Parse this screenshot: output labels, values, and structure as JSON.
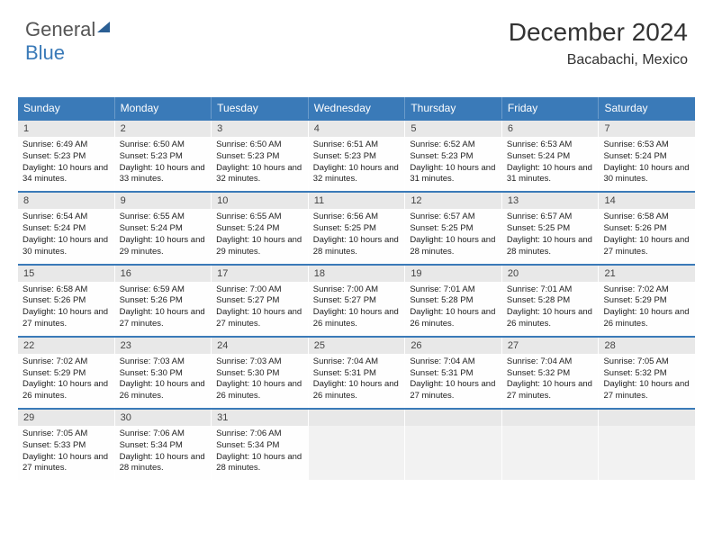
{
  "logo": {
    "part1": "General",
    "part2": "Blue"
  },
  "title": "December 2024",
  "location": "Bacabachi, Mexico",
  "colors": {
    "header_bg": "#3a7ab8",
    "daynum_bg": "#e8e8e8",
    "border_accent": "#3a7ab8",
    "text": "#222222",
    "background": "#ffffff"
  },
  "typography": {
    "title_fontsize": 28,
    "location_fontsize": 16,
    "header_fontsize": 12,
    "daynum_fontsize": 11,
    "cell_fontsize": 9.5
  },
  "days_of_week": [
    "Sunday",
    "Monday",
    "Tuesday",
    "Wednesday",
    "Thursday",
    "Friday",
    "Saturday"
  ],
  "weeks": [
    [
      {
        "n": "1",
        "sunrise": "6:49 AM",
        "sunset": "5:23 PM",
        "dl": "10 hours and 34 minutes."
      },
      {
        "n": "2",
        "sunrise": "6:50 AM",
        "sunset": "5:23 PM",
        "dl": "10 hours and 33 minutes."
      },
      {
        "n": "3",
        "sunrise": "6:50 AM",
        "sunset": "5:23 PM",
        "dl": "10 hours and 32 minutes."
      },
      {
        "n": "4",
        "sunrise": "6:51 AM",
        "sunset": "5:23 PM",
        "dl": "10 hours and 32 minutes."
      },
      {
        "n": "5",
        "sunrise": "6:52 AM",
        "sunset": "5:23 PM",
        "dl": "10 hours and 31 minutes."
      },
      {
        "n": "6",
        "sunrise": "6:53 AM",
        "sunset": "5:24 PM",
        "dl": "10 hours and 31 minutes."
      },
      {
        "n": "7",
        "sunrise": "6:53 AM",
        "sunset": "5:24 PM",
        "dl": "10 hours and 30 minutes."
      }
    ],
    [
      {
        "n": "8",
        "sunrise": "6:54 AM",
        "sunset": "5:24 PM",
        "dl": "10 hours and 30 minutes."
      },
      {
        "n": "9",
        "sunrise": "6:55 AM",
        "sunset": "5:24 PM",
        "dl": "10 hours and 29 minutes."
      },
      {
        "n": "10",
        "sunrise": "6:55 AM",
        "sunset": "5:24 PM",
        "dl": "10 hours and 29 minutes."
      },
      {
        "n": "11",
        "sunrise": "6:56 AM",
        "sunset": "5:25 PM",
        "dl": "10 hours and 28 minutes."
      },
      {
        "n": "12",
        "sunrise": "6:57 AM",
        "sunset": "5:25 PM",
        "dl": "10 hours and 28 minutes."
      },
      {
        "n": "13",
        "sunrise": "6:57 AM",
        "sunset": "5:25 PM",
        "dl": "10 hours and 28 minutes."
      },
      {
        "n": "14",
        "sunrise": "6:58 AM",
        "sunset": "5:26 PM",
        "dl": "10 hours and 27 minutes."
      }
    ],
    [
      {
        "n": "15",
        "sunrise": "6:58 AM",
        "sunset": "5:26 PM",
        "dl": "10 hours and 27 minutes."
      },
      {
        "n": "16",
        "sunrise": "6:59 AM",
        "sunset": "5:26 PM",
        "dl": "10 hours and 27 minutes."
      },
      {
        "n": "17",
        "sunrise": "7:00 AM",
        "sunset": "5:27 PM",
        "dl": "10 hours and 27 minutes."
      },
      {
        "n": "18",
        "sunrise": "7:00 AM",
        "sunset": "5:27 PM",
        "dl": "10 hours and 26 minutes."
      },
      {
        "n": "19",
        "sunrise": "7:01 AM",
        "sunset": "5:28 PM",
        "dl": "10 hours and 26 minutes."
      },
      {
        "n": "20",
        "sunrise": "7:01 AM",
        "sunset": "5:28 PM",
        "dl": "10 hours and 26 minutes."
      },
      {
        "n": "21",
        "sunrise": "7:02 AM",
        "sunset": "5:29 PM",
        "dl": "10 hours and 26 minutes."
      }
    ],
    [
      {
        "n": "22",
        "sunrise": "7:02 AM",
        "sunset": "5:29 PM",
        "dl": "10 hours and 26 minutes."
      },
      {
        "n": "23",
        "sunrise": "7:03 AM",
        "sunset": "5:30 PM",
        "dl": "10 hours and 26 minutes."
      },
      {
        "n": "24",
        "sunrise": "7:03 AM",
        "sunset": "5:30 PM",
        "dl": "10 hours and 26 minutes."
      },
      {
        "n": "25",
        "sunrise": "7:04 AM",
        "sunset": "5:31 PM",
        "dl": "10 hours and 26 minutes."
      },
      {
        "n": "26",
        "sunrise": "7:04 AM",
        "sunset": "5:31 PM",
        "dl": "10 hours and 27 minutes."
      },
      {
        "n": "27",
        "sunrise": "7:04 AM",
        "sunset": "5:32 PM",
        "dl": "10 hours and 27 minutes."
      },
      {
        "n": "28",
        "sunrise": "7:05 AM",
        "sunset": "5:32 PM",
        "dl": "10 hours and 27 minutes."
      }
    ],
    [
      {
        "n": "29",
        "sunrise": "7:05 AM",
        "sunset": "5:33 PM",
        "dl": "10 hours and 27 minutes."
      },
      {
        "n": "30",
        "sunrise": "7:06 AM",
        "sunset": "5:34 PM",
        "dl": "10 hours and 28 minutes."
      },
      {
        "n": "31",
        "sunrise": "7:06 AM",
        "sunset": "5:34 PM",
        "dl": "10 hours and 28 minutes."
      },
      null,
      null,
      null,
      null
    ]
  ],
  "labels": {
    "sunrise_prefix": "Sunrise: ",
    "sunset_prefix": "Sunset: ",
    "daylight_prefix": "Daylight: "
  }
}
